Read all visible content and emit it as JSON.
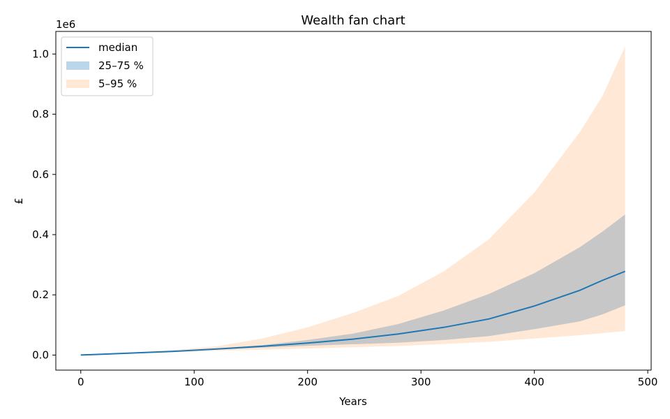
{
  "chart_data": {
    "type": "area",
    "title": "Wealth fan chart",
    "xlabel": "Years",
    "ylabel": "£",
    "y_scale_label": "1e6",
    "xlim": [
      -22,
      503
    ],
    "ylim": [
      -50000,
      1075000
    ],
    "x_ticks": [
      0,
      100,
      200,
      300,
      400,
      500
    ],
    "y_ticks": [
      0,
      200000,
      400000,
      600000,
      800000,
      1000000
    ],
    "y_tick_labels": [
      "0.0",
      "0.2",
      "0.4",
      "0.6",
      "0.8",
      "1.0"
    ],
    "grid": false,
    "legend_position": "upper-left",
    "series": [
      {
        "name": "median",
        "kind": "line",
        "color": "#1f77b4",
        "x": [
          0,
          40,
          80,
          120,
          160,
          200,
          240,
          280,
          320,
          360,
          400,
          440,
          460,
          480
        ],
        "values": [
          0,
          6000,
          12000,
          20000,
          29000,
          40000,
          53000,
          70000,
          92000,
          120000,
          163000,
          215000,
          248000,
          278000
        ]
      },
      {
        "name": "25–75 %",
        "kind": "band",
        "color": "#1f77b4",
        "fill_color": "#c7c7c7",
        "x": [
          0,
          40,
          80,
          120,
          160,
          200,
          240,
          280,
          320,
          360,
          400,
          440,
          460,
          480
        ],
        "lower": [
          0,
          5500,
          11000,
          18000,
          25000,
          31000,
          36000,
          41000,
          50000,
          63000,
          86000,
          112000,
          135000,
          165000
        ],
        "upper": [
          0,
          6500,
          13500,
          22000,
          33000,
          50000,
          71000,
          103000,
          148000,
          203000,
          272000,
          358000,
          410000,
          467000
        ]
      },
      {
        "name": "5–95 %",
        "kind": "band",
        "color": "#ffe8d5",
        "x": [
          0,
          40,
          80,
          120,
          160,
          200,
          240,
          280,
          320,
          360,
          400,
          440,
          460,
          480
        ],
        "lower": [
          0,
          4500,
          9000,
          14000,
          18000,
          22000,
          26000,
          30000,
          37000,
          44000,
          55000,
          66000,
          73000,
          80000
        ],
        "upper": [
          0,
          7500,
          16000,
          29000,
          55000,
          92000,
          140000,
          196000,
          278000,
          385000,
          540000,
          740000,
          860000,
          1025000
        ]
      }
    ]
  }
}
